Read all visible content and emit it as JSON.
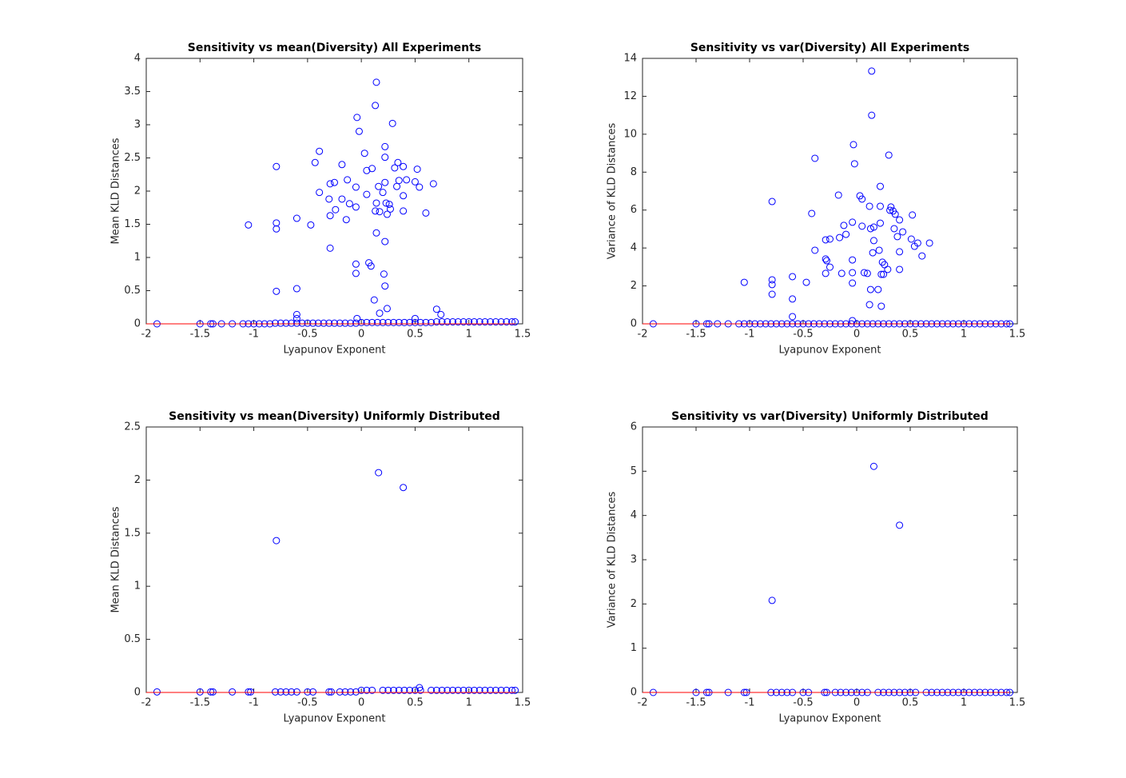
{
  "chart_data": [
    {
      "type": "scatter",
      "title": "Sensitivity vs mean(Diversity) All Experiments",
      "xlabel": "Lyapunov Exponent",
      "ylabel": "Mean KLD Distances",
      "xlim": [
        -2,
        1.5
      ],
      "xticks": [
        -2,
        -1.5,
        -1,
        -0.5,
        0,
        0.5,
        1,
        1.5
      ],
      "ylim": [
        0,
        4
      ],
      "yticks": [
        0,
        0.5,
        1,
        1.5,
        2,
        2.5,
        3,
        3.5,
        4
      ],
      "series": [
        {
          "type": "scatter",
          "color": "#0000ff",
          "x": [
            0.14,
            0.13,
            -0.04,
            0.29,
            -0.02,
            -0.39,
            0.22,
            0.03,
            -0.43,
            -0.79,
            0.34,
            -0.18,
            0.22,
            0.31,
            0.39,
            0.05,
            0.1,
            0.52,
            0.42,
            -0.13,
            0.22,
            0.35,
            0.5,
            0.67,
            -0.29,
            -0.25,
            -0.05,
            0.16,
            0.33,
            0.54,
            -0.39,
            0.2,
            0.39,
            0.05,
            -0.3,
            -0.18,
            0.14,
            0.23,
            0.26,
            -0.11,
            -0.05,
            -0.24,
            0.27,
            0.17,
            0.13,
            0.39,
            0.24,
            0.6,
            -0.29,
            -0.6,
            -0.14,
            -0.79,
            -0.47,
            -1.05,
            -0.79,
            0.14,
            0.22,
            -0.29,
            -0.05,
            0.07,
            0.09,
            -0.05,
            0.21,
            0.22,
            -0.6,
            -0.79,
            0.12,
            0.24,
            0.7,
            0.74,
            0.17,
            -0.6,
            -0.6,
            -0.04,
            0.5
          ],
          "values": [
            3.64,
            3.29,
            3.11,
            3.02,
            2.9,
            2.6,
            2.67,
            2.57,
            2.43,
            2.37,
            2.43,
            2.4,
            2.51,
            2.35,
            2.37,
            2.31,
            2.34,
            2.33,
            2.17,
            2.17,
            2.13,
            2.16,
            2.14,
            2.11,
            2.11,
            2.13,
            2.06,
            2.07,
            2.07,
            2.06,
            1.98,
            1.98,
            1.93,
            1.95,
            1.88,
            1.88,
            1.82,
            1.82,
            1.8,
            1.81,
            1.76,
            1.72,
            1.73,
            1.69,
            1.7,
            1.7,
            1.65,
            1.67,
            1.63,
            1.59,
            1.57,
            1.52,
            1.49,
            1.49,
            1.43,
            1.37,
            1.24,
            1.14,
            0.9,
            0.92,
            0.87,
            0.76,
            0.75,
            0.57,
            0.53,
            0.49,
            0.36,
            0.23,
            0.22,
            0.14,
            0.16,
            0.14,
            0.08,
            0.08,
            0.08
          ]
        },
        {
          "type": "scatter",
          "color": "#0000ff",
          "x": [
            -1.9,
            -1.5,
            -1.4,
            -1.38,
            -1.3,
            -1.2,
            -1.1,
            -1.05,
            -1.0,
            -0.95,
            -0.9,
            -0.85,
            -0.8,
            -0.75,
            -0.7,
            -0.65,
            -0.6,
            -0.55,
            -0.5,
            -0.45,
            -0.4,
            -0.35,
            -0.3,
            -0.25,
            -0.2,
            -0.15,
            -0.1,
            -0.05,
            0,
            0.05,
            0.1,
            0.15,
            0.2,
            0.25,
            0.3,
            0.35,
            0.4,
            0.45,
            0.5,
            0.55,
            0.6,
            0.65,
            0.7,
            0.75,
            0.8,
            0.85,
            0.9,
            0.95,
            1.0,
            1.05,
            1.1,
            1.15,
            1.2,
            1.25,
            1.3,
            1.35,
            1.4,
            1.43
          ],
          "values": [
            0,
            0,
            0,
            0,
            0,
            0,
            0,
            0,
            0,
            0,
            0,
            0,
            0.01,
            0.01,
            0.01,
            0.01,
            0.01,
            0.01,
            0.01,
            0.01,
            0.01,
            0.01,
            0.01,
            0.01,
            0.01,
            0.01,
            0.01,
            0.01,
            0.02,
            0.02,
            0.02,
            0.02,
            0.02,
            0.02,
            0.02,
            0.02,
            0.02,
            0.02,
            0.02,
            0.02,
            0.02,
            0.02,
            0.03,
            0.03,
            0.03,
            0.03,
            0.03,
            0.03,
            0.03,
            0.03,
            0.03,
            0.03,
            0.03,
            0.03,
            0.03,
            0.03,
            0.03,
            0.03
          ]
        },
        {
          "type": "line",
          "color": "#ff0000",
          "x": [
            -2,
            1.43
          ],
          "values": [
            0,
            0
          ]
        }
      ]
    },
    {
      "type": "scatter",
      "title": "Sensitivity vs var(Diversity) All Experiments",
      "xlabel": "Lyapunov Exponent",
      "ylabel": "Variance of KLD Distances",
      "xlim": [
        -2,
        1.5
      ],
      "xticks": [
        -2,
        -1.5,
        -1,
        -0.5,
        0,
        0.5,
        1,
        1.5
      ],
      "ylim": [
        0,
        14
      ],
      "yticks": [
        0,
        2,
        4,
        6,
        8,
        10,
        12,
        14
      ],
      "series": [
        {
          "type": "scatter",
          "color": "#0000ff",
          "x": [
            0.14,
            0.14,
            0.3,
            -0.03,
            -0.39,
            -0.02,
            0.22,
            0.03,
            -0.17,
            0.05,
            -0.79,
            0.12,
            0.22,
            0.32,
            0.34,
            0.31,
            0.36,
            -0.42,
            0.52,
            0.4,
            -0.04,
            0.22,
            -0.12,
            0.05,
            0.16,
            0.13,
            0.35,
            0.43,
            -0.16,
            -0.1,
            0.38,
            0.51,
            0.16,
            -0.25,
            -0.29,
            0.57,
            0.68,
            0.54,
            -0.39,
            0.21,
            0.15,
            0.4,
            0.61,
            -0.29,
            -0.28,
            -0.04,
            0.24,
            0.26,
            -0.25,
            0.29,
            0.4,
            0.07,
            0.1,
            -0.14,
            -0.29,
            -0.04,
            0.23,
            0.25,
            -0.6,
            -0.79,
            -1.05,
            -0.79,
            -0.47,
            -0.04,
            0.13,
            0.2,
            -0.79,
            -0.6,
            0.12,
            0.23,
            -0.6,
            -0.04
          ],
          "values": [
            13.33,
            11,
            8.9,
            9.45,
            8.73,
            8.44,
            7.25,
            6.75,
            6.79,
            6.58,
            6.45,
            6.2,
            6.2,
            6.16,
            5.95,
            5.99,
            5.78,
            5.82,
            5.74,
            5.48,
            5.36,
            5.31,
            5.19,
            5.15,
            5.1,
            5.02,
            5.02,
            4.85,
            4.55,
            4.72,
            4.6,
            4.47,
            4.39,
            4.47,
            4.43,
            4.26,
            4.26,
            4.09,
            3.88,
            3.88,
            3.75,
            3.8,
            3.58,
            3.42,
            3.33,
            3.37,
            3.25,
            3.12,
            2.99,
            2.87,
            2.87,
            2.7,
            2.66,
            2.66,
            2.66,
            2.7,
            2.61,
            2.61,
            2.49,
            2.32,
            2.19,
            2.07,
            2.19,
            2.15,
            1.81,
            1.81,
            1.56,
            1.31,
            1.01,
            0.93,
            0.38,
            0.17
          ]
        },
        {
          "type": "scatter",
          "color": "#0000ff",
          "x": [
            -1.9,
            -1.5,
            -1.4,
            -1.38,
            -1.3,
            -1.2,
            -1.1,
            -1.05,
            -1.0,
            -0.95,
            -0.9,
            -0.85,
            -0.8,
            -0.75,
            -0.7,
            -0.65,
            -0.6,
            -0.55,
            -0.5,
            -0.45,
            -0.4,
            -0.35,
            -0.3,
            -0.25,
            -0.2,
            -0.15,
            -0.1,
            -0.05,
            0,
            0.05,
            0.1,
            0.15,
            0.2,
            0.25,
            0.3,
            0.35,
            0.4,
            0.45,
            0.5,
            0.55,
            0.6,
            0.65,
            0.7,
            0.75,
            0.8,
            0.85,
            0.9,
            0.95,
            1.0,
            1.05,
            1.1,
            1.15,
            1.2,
            1.25,
            1.3,
            1.35,
            1.4,
            1.43
          ],
          "values": [
            0,
            0,
            0,
            0,
            0,
            0,
            0,
            0,
            0,
            0,
            0,
            0,
            0,
            0,
            0,
            0,
            0,
            0,
            0,
            0,
            0,
            0,
            0,
            0,
            0,
            0,
            0,
            0,
            0,
            0,
            0,
            0,
            0,
            0,
            0,
            0,
            0,
            0,
            0,
            0,
            0,
            0,
            0,
            0,
            0,
            0,
            0,
            0,
            0,
            0,
            0,
            0,
            0,
            0,
            0,
            0,
            0,
            0
          ]
        },
        {
          "type": "line",
          "color": "#ff0000",
          "x": [
            -2,
            1.43
          ],
          "values": [
            0,
            0
          ]
        }
      ]
    },
    {
      "type": "scatter",
      "title": "Sensitivity vs mean(Diversity) Uniformly Distributed",
      "xlabel": "Lyapunov Exponent",
      "ylabel": "Mean KLD Distances",
      "xlim": [
        -2,
        1.5
      ],
      "xticks": [
        -2,
        -1.5,
        -1,
        -0.5,
        0,
        0.5,
        1,
        1.5
      ],
      "ylim": [
        0,
        2.5
      ],
      "yticks": [
        0,
        0.5,
        1,
        1.5,
        2,
        2.5
      ],
      "series": [
        {
          "type": "scatter",
          "color": "#0000ff",
          "x": [
            0.16,
            0.39,
            -0.79,
            0.54
          ],
          "values": [
            2.07,
            1.93,
            1.43,
            0.045
          ]
        },
        {
          "type": "scatter",
          "color": "#0000ff",
          "x": [
            -1.9,
            -1.5,
            -1.4,
            -1.38,
            -1.2,
            -1.05,
            -1.03,
            -0.8,
            -0.75,
            -0.7,
            -0.65,
            -0.6,
            -0.5,
            -0.45,
            -0.3,
            -0.28,
            -0.2,
            -0.15,
            -0.1,
            -0.05,
            0,
            0.05,
            0.1,
            0.2,
            0.25,
            0.3,
            0.35,
            0.4,
            0.45,
            0.5,
            0.55,
            0.65,
            0.7,
            0.75,
            0.8,
            0.85,
            0.9,
            0.95,
            1,
            1.05,
            1.1,
            1.15,
            1.2,
            1.25,
            1.3,
            1.35,
            1.4,
            1.43
          ],
          "values": [
            0.005,
            0.005,
            0.005,
            0.005,
            0.005,
            0.005,
            0.005,
            0.005,
            0.005,
            0.005,
            0.005,
            0.005,
            0.005,
            0.005,
            0.005,
            0.005,
            0.005,
            0.005,
            0.005,
            0.005,
            0.02,
            0.02,
            0.02,
            0.02,
            0.02,
            0.02,
            0.02,
            0.02,
            0.02,
            0.02,
            0.02,
            0.02,
            0.02,
            0.02,
            0.02,
            0.02,
            0.02,
            0.02,
            0.02,
            0.02,
            0.02,
            0.02,
            0.02,
            0.02,
            0.02,
            0.02,
            0.02,
            0.02
          ]
        },
        {
          "type": "line",
          "color": "#ff0000",
          "x": [
            -2,
            1.43
          ],
          "values": [
            0,
            0
          ]
        }
      ]
    },
    {
      "type": "scatter",
      "title": "Sensitivity vs var(Diversity) Uniformly Distributed",
      "xlabel": "Lyapunov Exponent",
      "ylabel": "Variance of KLD Distances",
      "xlim": [
        -2,
        1.5
      ],
      "xticks": [
        -2,
        -1.5,
        -1,
        -0.5,
        0,
        0.5,
        1,
        1.5
      ],
      "ylim": [
        0,
        6
      ],
      "yticks": [
        0,
        1,
        2,
        3,
        4,
        5,
        6
      ],
      "series": [
        {
          "type": "scatter",
          "color": "#0000ff",
          "x": [
            0.16,
            0.4,
            -0.79
          ],
          "values": [
            5.11,
            3.78,
            2.08
          ]
        },
        {
          "type": "scatter",
          "color": "#0000ff",
          "x": [
            -1.9,
            -1.5,
            -1.4,
            -1.38,
            -1.2,
            -1.05,
            -1.03,
            -0.8,
            -0.75,
            -0.7,
            -0.65,
            -0.6,
            -0.5,
            -0.45,
            -0.3,
            -0.28,
            -0.2,
            -0.15,
            -0.1,
            -0.05,
            0,
            0.05,
            0.1,
            0.2,
            0.25,
            0.3,
            0.35,
            0.4,
            0.45,
            0.5,
            0.55,
            0.65,
            0.7,
            0.75,
            0.8,
            0.85,
            0.9,
            0.95,
            1,
            1.05,
            1.1,
            1.15,
            1.2,
            1.25,
            1.3,
            1.35,
            1.4,
            1.43
          ],
          "values": [
            0,
            0,
            0,
            0,
            0,
            0,
            0,
            0,
            0,
            0,
            0,
            0,
            0,
            0,
            0,
            0,
            0,
            0,
            0,
            0,
            0,
            0,
            0,
            0,
            0,
            0,
            0,
            0,
            0,
            0,
            0,
            0,
            0,
            0,
            0,
            0,
            0,
            0,
            0,
            0,
            0,
            0,
            0,
            0,
            0,
            0,
            0,
            0
          ]
        },
        {
          "type": "line",
          "color": "#ff0000",
          "x": [
            -2,
            1.43
          ],
          "values": [
            0,
            0
          ]
        }
      ]
    }
  ]
}
